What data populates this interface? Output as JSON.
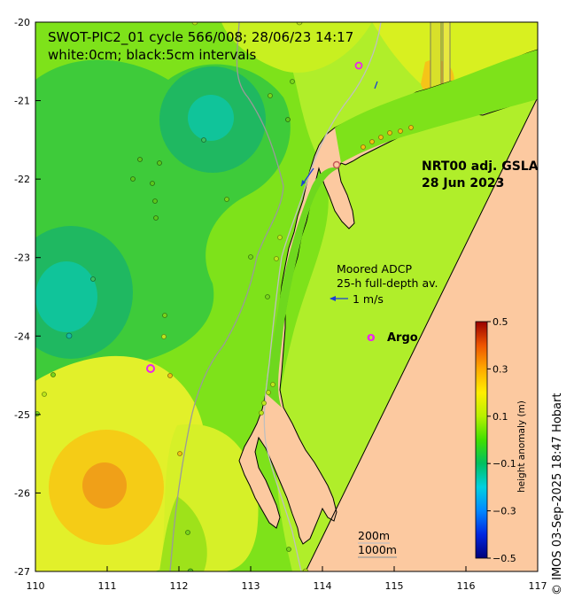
{
  "title_line1": "SWOT-PIC2_01 cycle 566/008; 28/06/23 14:17",
  "title_line2": "white:0cm; black:5cm intervals",
  "product_line1": "NRT00 adj. GSLA",
  "product_line2": "28 Jun 2023",
  "adcp_line1": "Moored ADCP",
  "adcp_line2": "25-h full-depth av.",
  "adcp_scale": "1 m/s",
  "argo_marker": "o",
  "argo_label": "Argo",
  "isobath_200": "200m",
  "isobath_1000": "1000m",
  "colorbar_title": "height anomaly (m)",
  "credit": "© IMOS 03-Sep-2025 18:47 Hobart",
  "colors": {
    "land": "#fcc9a0",
    "argo": "#ee22ee",
    "adcp_arrow": "#1a3fd6"
  },
  "chart_data": {
    "type": "heatmap",
    "xlim": [
      110,
      117
    ],
    "ylim": [
      -27,
      -20
    ],
    "x_ticks": [
      "110",
      "111",
      "112",
      "113",
      "114",
      "115",
      "116",
      "117"
    ],
    "y_ticks": [
      "-20",
      "-21",
      "-22",
      "-23",
      "-24",
      "-25",
      "-26",
      "-27"
    ],
    "colorbar": {
      "range": [
        -0.5,
        0.5
      ],
      "ticks": [
        "0.5",
        "0.3",
        "0.1",
        "−0.1",
        "−0.3",
        "−0.5"
      ]
    }
  }
}
